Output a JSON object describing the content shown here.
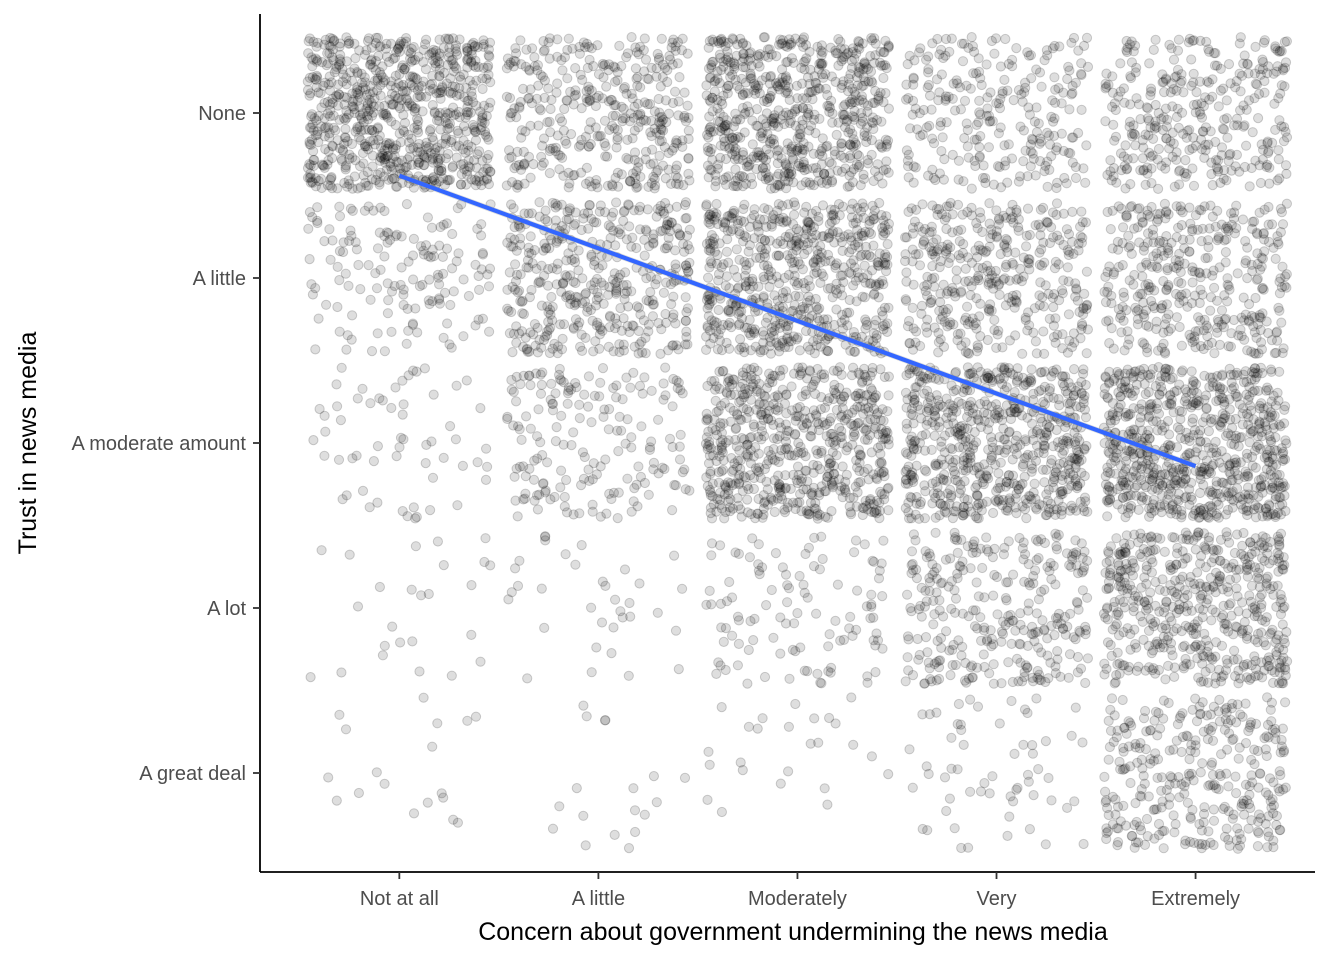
{
  "chart_data": {
    "type": "scatter",
    "jitter": true,
    "xlabel": "Concern about government undermining the news media",
    "ylabel": "Trust in news media",
    "x_categories": [
      "Not at all",
      "A little",
      "Moderately",
      "Very",
      "Extremely"
    ],
    "y_categories": [
      "A great deal",
      "A lot",
      "A moderate amount",
      "A little",
      "None"
    ],
    "xlim": [
      0.3,
      5.6
    ],
    "ylim": [
      0.4,
      5.6
    ],
    "cell_counts": [
      [
        18,
        18,
        25,
        60,
        320
      ],
      [
        25,
        35,
        110,
        300,
        520
      ],
      [
        60,
        180,
        620,
        640,
        720
      ],
      [
        150,
        420,
        600,
        380,
        380
      ],
      [
        750,
        380,
        650,
        260,
        330
      ]
    ],
    "trend_line": {
      "color": "#3366FF",
      "x": [
        1,
        5
      ],
      "y": [
        4.62,
        2.86
      ]
    },
    "point_color": "#000000",
    "point_alpha": 0.13,
    "grid": false,
    "legend": "none"
  }
}
